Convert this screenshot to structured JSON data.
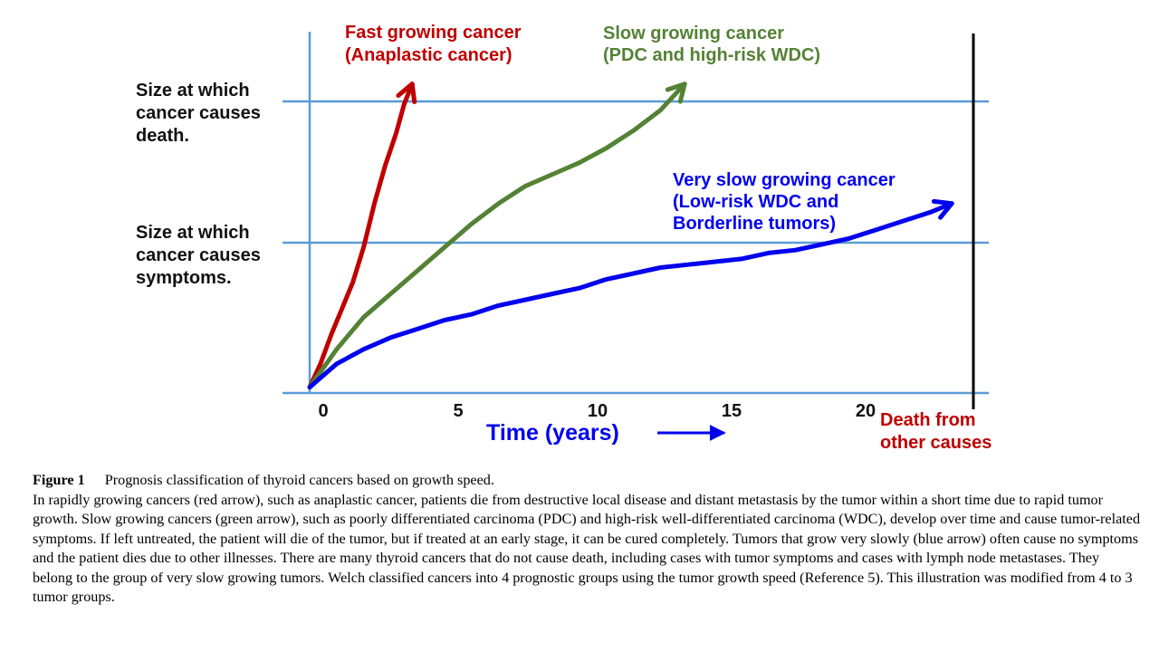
{
  "chart_data": {
    "type": "line",
    "xlabel": "Time (years)",
    "x_ticks": [
      "0",
      "5",
      "10",
      "15",
      "20"
    ],
    "xlim": [
      0,
      24
    ],
    "ylim": [
      0,
      100
    ],
    "thresholds": [
      {
        "name": "symptoms",
        "label": [
          "Size at which",
          "cancer causes",
          "symptoms."
        ],
        "value": 52
      },
      {
        "name": "death",
        "label": [
          "Size at which",
          "cancer causes",
          "death."
        ],
        "value": 100
      }
    ],
    "death_line": {
      "x": 23.9,
      "label": [
        "Death from",
        "other causes"
      ],
      "color": "#c00000"
    },
    "series": [
      {
        "name": "fast",
        "label": [
          "Fast growing cancer",
          "(Anaplastic cancer)"
        ],
        "color": "#c00000",
        "x": [
          0,
          0.4,
          0.8,
          1.2,
          1.6,
          2.0,
          2.4,
          2.8,
          3.2,
          3.5,
          3.8
        ],
        "y": [
          2,
          10,
          20,
          29,
          38,
          50,
          65,
          78,
          89,
          99,
          106
        ]
      },
      {
        "name": "slow",
        "label": [
          "Slow growing cancer",
          "(PDC and high-risk WDC)"
        ],
        "color": "#548235",
        "x": [
          0,
          1,
          2,
          3,
          4,
          5,
          6,
          7,
          8,
          9,
          10,
          11,
          12,
          13,
          13.9
        ],
        "y": [
          2,
          15,
          26,
          34,
          42,
          50,
          58,
          65,
          71,
          75,
          79,
          84,
          90,
          97,
          106
        ]
      },
      {
        "name": "very-slow",
        "label": [
          "Very slow growing cancer",
          "(Low-risk WDC and",
          "Borderline tumors)"
        ],
        "color": "#0000ee",
        "x": [
          0,
          0.5,
          1,
          2,
          3,
          4,
          5,
          6,
          7,
          8,
          9,
          10,
          11,
          12,
          13,
          14,
          15,
          16,
          17,
          18,
          19,
          20,
          21,
          22,
          23,
          23.8
        ],
        "y": [
          2,
          6,
          10,
          15,
          19,
          22,
          25,
          27,
          30,
          32,
          34,
          36,
          39,
          41,
          43,
          44,
          45,
          46,
          48,
          49,
          51,
          53,
          56,
          59,
          62,
          65
        ]
      }
    ]
  },
  "caption": {
    "label": "Figure 1",
    "title": "Prognosis classification of thyroid cancers based on growth speed.",
    "body": "In rapidly growing cancers (red arrow), such as anaplastic cancer, patients die from destructive local disease and distant metastasis by the tumor within a short time due to rapid tumor growth. Slow growing cancers (green arrow), such as poorly differentiated carcinoma (PDC) and high-risk well-differentiated carcinoma (WDC), develop over time and cause tumor-related symptoms. If left untreated, the patient will die of the tumor, but if treated at an early stage, it can be cured completely. Tumors that grow very slowly (blue arrow) often cause no symptoms and the patient dies due to other illnesses. There are many thyroid cancers that do not cause death, including cases with tumor symptoms and cases with lymph node metastases. They belong to the group of very slow growing tumors. Welch classified cancers into 4 prognostic groups using the tumor growth speed (Reference 5). This illustration was modified from 4 to 3 tumor groups."
  }
}
